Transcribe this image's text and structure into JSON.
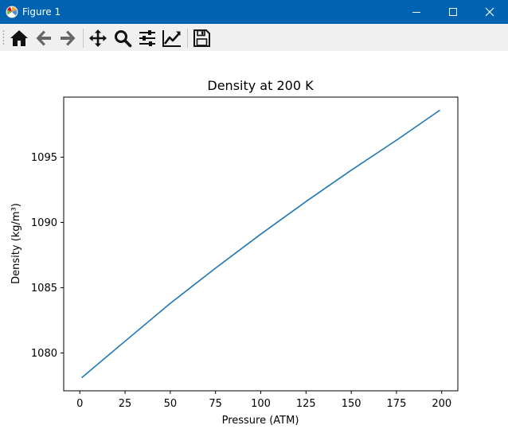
{
  "window": {
    "title": "Figure 1",
    "icon": "matplotlib-logo-icon",
    "titlebar_color": "#0063b1",
    "controls": [
      "minimize-icon",
      "maximize-icon",
      "close-icon"
    ]
  },
  "toolbar": {
    "tools": [
      "home-icon",
      "back-icon",
      "forward-icon",
      "pan-icon",
      "zoom-icon",
      "configure-subplots-icon",
      "edit-axis-icon",
      "save-icon"
    ]
  },
  "chart_data": {
    "type": "line",
    "title": "Density at 200 K",
    "xlabel": "Pressure (ATM)",
    "ylabel": "Density (kg/m³)",
    "xlim": [
      -8.9,
      208.9
    ],
    "ylim": [
      1077.1,
      1099.6
    ],
    "xticks": [
      0,
      25,
      50,
      75,
      100,
      125,
      150,
      175,
      200
    ],
    "yticks": [
      1080,
      1085,
      1090,
      1095
    ],
    "grid": false,
    "series": [
      {
        "color": "#1f77b4",
        "x": [
          1,
          25,
          50,
          75,
          100,
          125,
          150,
          175,
          199
        ],
        "y": [
          1078.1,
          1080.9,
          1083.8,
          1086.5,
          1089.1,
          1091.6,
          1094.0,
          1096.3,
          1098.6
        ]
      }
    ]
  }
}
